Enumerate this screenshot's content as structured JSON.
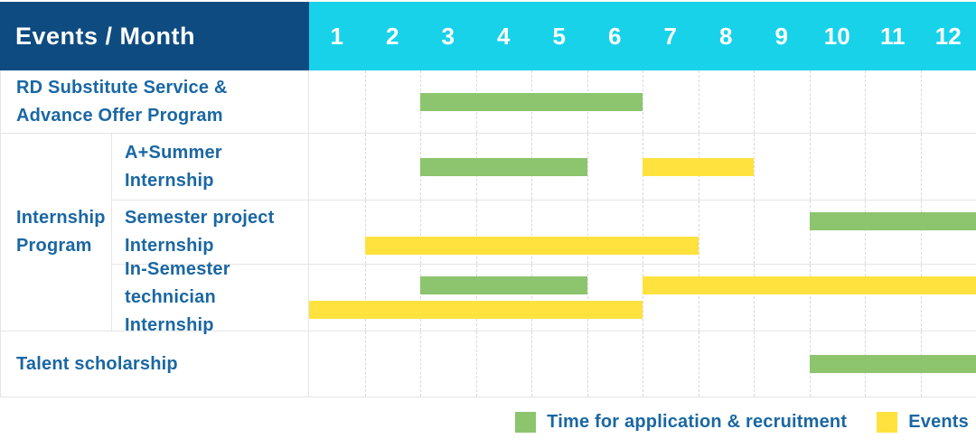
{
  "colors": {
    "header_navy": "#0e4b80",
    "header_cyan": "#18d2e9",
    "bar_green": "#8cc56d",
    "bar_yellow": "#ffe23e",
    "label_blue": "#1a67a3"
  },
  "header": {
    "title": "Events / Month",
    "months": [
      "1",
      "2",
      "3",
      "4",
      "5",
      "6",
      "7",
      "8",
      "9",
      "10",
      "11",
      "12"
    ]
  },
  "group": {
    "label": "Internship Program",
    "label_lines": [
      "Internship",
      "Program"
    ]
  },
  "rows": [
    {
      "label": "RD Substitute Service & Advance Offer Program",
      "label_lines": [
        "RD Substitute Service &",
        "Advance Offer Program"
      ],
      "in_group": false,
      "bars": [
        {
          "color": "green",
          "line": "single",
          "start": 3,
          "end": 6
        }
      ]
    },
    {
      "label": "A+Summer Internship",
      "label_lines": [
        "A+Summer",
        "Internship"
      ],
      "in_group": true,
      "bars": [
        {
          "color": "green",
          "line": "single",
          "start": 3,
          "end": 5
        },
        {
          "color": "yellow",
          "line": "single",
          "start": 7,
          "end": 8
        }
      ]
    },
    {
      "label": "Semester project Internship",
      "label_lines": [
        "Semester project",
        "Internship"
      ],
      "in_group": true,
      "bars": [
        {
          "color": "green",
          "line": "top",
          "start": 10,
          "end": 12
        },
        {
          "color": "yellow",
          "line": "bottom",
          "start": 2,
          "end": 7
        }
      ]
    },
    {
      "label": "In-Semester technician Internship",
      "label_lines": [
        "In-Semester",
        "technician Internship"
      ],
      "in_group": true,
      "bars": [
        {
          "color": "green",
          "line": "top",
          "start": 3,
          "end": 5
        },
        {
          "color": "yellow",
          "line": "top",
          "start": 7,
          "end": 12
        },
        {
          "color": "yellow",
          "line": "bottom",
          "start": 1,
          "end": 6
        }
      ]
    },
    {
      "label": "Talent scholarship",
      "label_lines": [
        "Talent scholarship"
      ],
      "in_group": false,
      "bars": [
        {
          "color": "green",
          "line": "single",
          "start": 10,
          "end": 12
        }
      ]
    }
  ],
  "legend": {
    "items": [
      {
        "color": "green",
        "label": "Time for application & recruitment"
      },
      {
        "color": "yellow",
        "label": "Events"
      }
    ]
  },
  "chart_data": {
    "type": "bar",
    "variant": "gantt",
    "title": "Events / Month",
    "x_unit": "month",
    "x_range": [
      1,
      12
    ],
    "legend": {
      "green": "Time for application & recruitment",
      "yellow": "Events"
    },
    "rows": [
      {
        "label": "RD Substitute Service & Advance Offer Program",
        "group": null,
        "segments": [
          {
            "kind": "application_recruitment",
            "color": "green",
            "start_month": 3,
            "end_month": 6
          }
        ]
      },
      {
        "label": "A+Summer Internship",
        "group": "Internship Program",
        "segments": [
          {
            "kind": "application_recruitment",
            "color": "green",
            "start_month": 3,
            "end_month": 5
          },
          {
            "kind": "events",
            "color": "yellow",
            "start_month": 7,
            "end_month": 8
          }
        ]
      },
      {
        "label": "Semester project Internship",
        "group": "Internship Program",
        "segments": [
          {
            "kind": "application_recruitment",
            "color": "green",
            "start_month": 10,
            "end_month": 12
          },
          {
            "kind": "events",
            "color": "yellow",
            "start_month": 2,
            "end_month": 7
          }
        ]
      },
      {
        "label": "In-Semester technician Internship",
        "group": "Internship Program",
        "segments": [
          {
            "kind": "application_recruitment",
            "color": "green",
            "start_month": 3,
            "end_month": 5
          },
          {
            "kind": "events",
            "color": "yellow",
            "start_month": 7,
            "end_month": 12
          },
          {
            "kind": "events",
            "color": "yellow",
            "start_month": 1,
            "end_month": 6
          }
        ]
      },
      {
        "label": "Talent scholarship",
        "group": null,
        "segments": [
          {
            "kind": "application_recruitment",
            "color": "green",
            "start_month": 10,
            "end_month": 12
          }
        ]
      }
    ]
  }
}
